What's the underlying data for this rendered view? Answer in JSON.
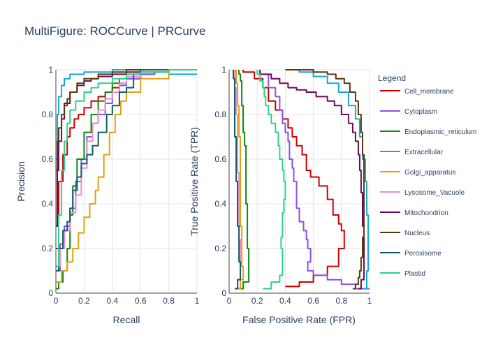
{
  "figure": {
    "title": "MultiFigure: ROCCurve | PRCurve"
  },
  "legend": {
    "title": "Legend"
  },
  "chart_data": [
    {
      "type": "line",
      "name": "pr",
      "xlabel": "Recall",
      "ylabel": "Precision",
      "xlim": [
        0,
        1
      ],
      "ylim": [
        0,
        1
      ],
      "xticks": [
        "0",
        "0.2",
        "0.4",
        "0.6",
        "0.8",
        "1"
      ],
      "yticks": [
        "0",
        "0.2",
        "0.4",
        "0.6",
        "0.8",
        "1"
      ],
      "grid": true,
      "series": [
        {
          "name": "Cell_membrane",
          "color": "#cc0000",
          "x": [
            0,
            0.02,
            0.05,
            0.08,
            0.1,
            0.13,
            0.16,
            0.2,
            0.25,
            0.3,
            0.35,
            0.4,
            0.45,
            0.5,
            0.6,
            0.7,
            0.8,
            0.9,
            1
          ],
          "y": [
            0.2,
            0.5,
            0.62,
            0.7,
            0.74,
            0.78,
            0.8,
            0.83,
            0.86,
            0.88,
            0.9,
            0.92,
            0.94,
            0.96,
            0.98,
            0.99,
            1,
            1,
            1
          ]
        },
        {
          "name": "Cytoplasm",
          "color": "#8c4fe8",
          "x": [
            0,
            0.03,
            0.06,
            0.1,
            0.14,
            0.18,
            0.22,
            0.26,
            0.3,
            0.35,
            0.4,
            0.45,
            0.5,
            0.6,
            0.7,
            0.8,
            1
          ],
          "y": [
            0.1,
            0.22,
            0.3,
            0.38,
            0.5,
            0.6,
            0.7,
            0.76,
            0.8,
            0.85,
            0.9,
            0.93,
            0.96,
            0.98,
            0.99,
            1,
            1
          ]
        },
        {
          "name": "Endoplasmic_reticulum",
          "color": "#108a10",
          "x": [
            0,
            0.02,
            0.05,
            0.08,
            0.1,
            0.12,
            0.15,
            0.2,
            0.25,
            0.3,
            0.35,
            0.4,
            0.45,
            0.5,
            0.6,
            0.8,
            1
          ],
          "y": [
            0.02,
            0.05,
            0.1,
            0.2,
            0.35,
            0.48,
            0.6,
            0.72,
            0.8,
            0.86,
            0.9,
            0.94,
            0.96,
            0.98,
            0.99,
            1,
            1
          ]
        },
        {
          "name": "Extracellular",
          "color": "#17a8d6",
          "x": [
            0,
            0.01,
            0.02,
            0.04,
            0.06,
            0.1,
            0.2,
            0.3,
            0.4,
            0.5,
            0.6,
            0.7,
            0.8,
            1
          ],
          "y": [
            0.6,
            0.8,
            0.88,
            0.93,
            0.96,
            0.98,
            0.99,
            0.99,
            1,
            1,
            0.99,
            0.99,
            0.98,
            0.98
          ]
        },
        {
          "name": "Golgi_apparatus",
          "color": "#e3a010",
          "x": [
            0,
            0.04,
            0.08,
            0.12,
            0.16,
            0.2,
            0.24,
            0.28,
            0.3,
            0.34,
            0.38,
            0.42,
            0.46,
            0.5,
            0.6,
            0.8,
            1
          ],
          "y": [
            0.05,
            0.1,
            0.14,
            0.2,
            0.27,
            0.34,
            0.4,
            0.46,
            0.52,
            0.62,
            0.72,
            0.8,
            0.86,
            0.9,
            0.96,
            1,
            1
          ]
        },
        {
          "name": "Lysosome_Vacuole",
          "color": "#f08ccc",
          "x": [
            0,
            0.03,
            0.06,
            0.1,
            0.14,
            0.18,
            0.22,
            0.26,
            0.3,
            0.35,
            0.4,
            0.45,
            0.5,
            0.6,
            0.8,
            1
          ],
          "y": [
            0.12,
            0.2,
            0.28,
            0.36,
            0.44,
            0.56,
            0.68,
            0.76,
            0.82,
            0.87,
            0.9,
            0.94,
            0.97,
            0.99,
            1,
            1
          ]
        },
        {
          "name": "Mitochondrion",
          "color": "#6b0a5a",
          "x": [
            0,
            0.01,
            0.02,
            0.04,
            0.06,
            0.1,
            0.15,
            0.2,
            0.25,
            0.3,
            0.4,
            0.5,
            0.6,
            0.8,
            1
          ],
          "y": [
            0.3,
            0.55,
            0.68,
            0.78,
            0.85,
            0.9,
            0.93,
            0.95,
            0.96,
            0.97,
            0.98,
            0.99,
            1,
            1,
            1
          ]
        },
        {
          "name": "Nucleus",
          "color": "#5a3a08",
          "x": [
            0,
            0.01,
            0.02,
            0.04,
            0.06,
            0.08,
            0.1,
            0.15,
            0.2,
            0.3,
            0.4,
            0.5,
            0.6,
            0.8,
            1
          ],
          "y": [
            0.55,
            0.68,
            0.74,
            0.8,
            0.84,
            0.87,
            0.9,
            0.94,
            0.96,
            0.98,
            0.99,
            1,
            1,
            1,
            1
          ]
        },
        {
          "name": "Peroxisome",
          "color": "#0f5c6b",
          "x": [
            0,
            0.02,
            0.05,
            0.08,
            0.1,
            0.12,
            0.15,
            0.18,
            0.22,
            0.26,
            0.3,
            0.36,
            0.4,
            0.45,
            0.5,
            0.55,
            0.6,
            0.8,
            1
          ],
          "y": [
            0.1,
            0.2,
            0.28,
            0.32,
            0.38,
            0.46,
            0.52,
            0.58,
            0.62,
            0.66,
            0.72,
            0.8,
            0.84,
            0.9,
            0.92,
            0.98,
            1,
            1,
            1
          ]
        },
        {
          "name": "Plastid",
          "color": "#2ad488",
          "x": [
            0,
            0.02,
            0.04,
            0.06,
            0.08,
            0.1,
            0.14,
            0.2,
            0.25,
            0.3,
            0.4,
            0.5,
            0.6,
            0.8,
            1
          ],
          "y": [
            0.12,
            0.35,
            0.55,
            0.68,
            0.76,
            0.82,
            0.86,
            0.9,
            0.92,
            0.94,
            0.96,
            0.98,
            0.99,
            1,
            1
          ]
        }
      ]
    },
    {
      "type": "line",
      "name": "roc",
      "xlabel": "False Positive Rate (FPR)",
      "ylabel": "True Positive Rate (TPR)",
      "xlim": [
        0,
        1
      ],
      "ylim": [
        0,
        1
      ],
      "xticks": [
        "0",
        "0.2",
        "0.4",
        "0.6",
        "0.8",
        "1"
      ],
      "yticks": [
        "0",
        "0.2",
        "0.4",
        "0.6",
        "0.8",
        "1"
      ],
      "grid": true,
      "series": [
        {
          "name": "Cell_membrane",
          "color": "#cc0000",
          "x": [
            0.4,
            0.5,
            0.6,
            0.7,
            0.78,
            0.82,
            0.8,
            0.78,
            0.74,
            0.7,
            0.64,
            0.58,
            0.55,
            0.52,
            0.48,
            0.45,
            0.42,
            0.38,
            0.33,
            0.28,
            0.24,
            0.18,
            0.1
          ],
          "y": [
            0.03,
            0.05,
            0.08,
            0.12,
            0.2,
            0.28,
            0.31,
            0.35,
            0.42,
            0.48,
            0.52,
            0.55,
            0.62,
            0.66,
            0.7,
            0.74,
            0.78,
            0.82,
            0.86,
            0.92,
            0.96,
            0.99,
            1
          ]
        },
        {
          "name": "Cytoplasm",
          "color": "#8c4fe8",
          "x": [
            1,
            0.9,
            0.8,
            0.7,
            0.6,
            0.56,
            0.58,
            0.56,
            0.55,
            0.53,
            0.5,
            0.48,
            0.48,
            0.46,
            0.45,
            0.43,
            0.42,
            0.4,
            0.38,
            0.36,
            0.33,
            0.28,
            0.22
          ],
          "y": [
            0.02,
            0.04,
            0.06,
            0.08,
            0.1,
            0.14,
            0.2,
            0.24,
            0.28,
            0.32,
            0.38,
            0.42,
            0.5,
            0.56,
            0.6,
            0.68,
            0.72,
            0.76,
            0.82,
            0.88,
            0.92,
            0.98,
            1
          ]
        },
        {
          "name": "Endoplasmic_reticulum",
          "color": "#108a10",
          "x": [
            0.06,
            0.1,
            0.14,
            0.14,
            0.13,
            0.13,
            0.12,
            0.12,
            0.12,
            0.11,
            0.1,
            0.1,
            0.09,
            0.09,
            0.08,
            0.07
          ],
          "y": [
            0.02,
            0.05,
            0.1,
            0.2,
            0.3,
            0.4,
            0.5,
            0.58,
            0.66,
            0.72,
            0.78,
            0.84,
            0.9,
            0.95,
            0.98,
            1
          ]
        },
        {
          "name": "Extracellular",
          "color": "#17a8d6",
          "x": [
            0.96,
            0.98,
            0.99,
            0.99,
            0.98,
            0.97,
            0.95,
            0.93,
            0.9,
            0.85,
            0.78,
            0.7,
            0.6,
            0.5,
            0.4
          ],
          "y": [
            0.02,
            0.1,
            0.2,
            0.35,
            0.5,
            0.6,
            0.7,
            0.78,
            0.84,
            0.9,
            0.94,
            0.97,
            0.99,
            1,
            1
          ]
        },
        {
          "name": "Golgi_apparatus",
          "color": "#e3a010",
          "x": [
            0.06,
            0.08,
            0.1,
            0.09,
            0.09,
            0.08,
            0.08,
            0.08,
            0.08,
            0.07,
            0.07,
            0.06,
            0.06,
            0.05,
            0.05
          ],
          "y": [
            0.02,
            0.06,
            0.12,
            0.2,
            0.3,
            0.4,
            0.5,
            0.6,
            0.7,
            0.78,
            0.84,
            0.9,
            0.94,
            0.98,
            1
          ]
        },
        {
          "name": "Lysosome_Vacuole",
          "color": "#f08ccc",
          "x": [
            0.04,
            0.06,
            0.08,
            0.08,
            0.07,
            0.07,
            0.07,
            0.06,
            0.06,
            0.06,
            0.05,
            0.05,
            0.04,
            0.04
          ],
          "y": [
            0.02,
            0.06,
            0.14,
            0.24,
            0.34,
            0.44,
            0.54,
            0.64,
            0.72,
            0.8,
            0.86,
            0.92,
            0.97,
            1
          ]
        },
        {
          "name": "Mitochondrion",
          "color": "#6b0a5a",
          "x": [
            0.92,
            0.94,
            0.96,
            0.96,
            0.95,
            0.94,
            0.93,
            0.92,
            0.9,
            0.88,
            0.85,
            0.8,
            0.75,
            0.7,
            0.62,
            0.55,
            0.48,
            0.42,
            0.36,
            0.3,
            0.22
          ],
          "y": [
            0.02,
            0.06,
            0.12,
            0.3,
            0.45,
            0.55,
            0.62,
            0.68,
            0.72,
            0.76,
            0.8,
            0.84,
            0.86,
            0.88,
            0.9,
            0.91,
            0.92,
            0.94,
            0.96,
            0.98,
            1
          ]
        },
        {
          "name": "Nucleus",
          "color": "#5a3a08",
          "x": [
            0.88,
            0.9,
            0.92,
            0.93,
            0.94,
            0.95,
            0.96,
            0.96,
            0.96,
            0.95,
            0.94,
            0.92,
            0.9,
            0.86,
            0.82,
            0.76,
            0.7,
            0.6,
            0.5,
            0.4
          ],
          "y": [
            0.02,
            0.04,
            0.07,
            0.1,
            0.16,
            0.25,
            0.35,
            0.5,
            0.62,
            0.72,
            0.8,
            0.86,
            0.9,
            0.94,
            0.96,
            0.98,
            0.99,
            1,
            1,
            1
          ]
        },
        {
          "name": "Peroxisome",
          "color": "#0f5c6b",
          "x": [
            0.04,
            0.06,
            0.08,
            0.08,
            0.07,
            0.07,
            0.06,
            0.06,
            0.05,
            0.05,
            0.04,
            0.04,
            0.04,
            0.03
          ],
          "y": [
            0.02,
            0.06,
            0.1,
            0.14,
            0.2,
            0.3,
            0.4,
            0.5,
            0.6,
            0.7,
            0.8,
            0.9,
            0.96,
            1
          ]
        },
        {
          "name": "Plastid",
          "color": "#2ad488",
          "x": [
            0.24,
            0.3,
            0.36,
            0.38,
            0.38,
            0.38,
            0.37,
            0.38,
            0.38,
            0.39,
            0.4,
            0.39,
            0.38,
            0.36,
            0.35,
            0.33,
            0.3,
            0.28,
            0.26,
            0.25,
            0.24,
            0.22,
            0.2
          ],
          "y": [
            0.02,
            0.05,
            0.08,
            0.12,
            0.16,
            0.2,
            0.25,
            0.3,
            0.36,
            0.42,
            0.5,
            0.55,
            0.6,
            0.66,
            0.72,
            0.76,
            0.8,
            0.84,
            0.88,
            0.92,
            0.95,
            0.98,
            1
          ]
        }
      ]
    }
  ]
}
